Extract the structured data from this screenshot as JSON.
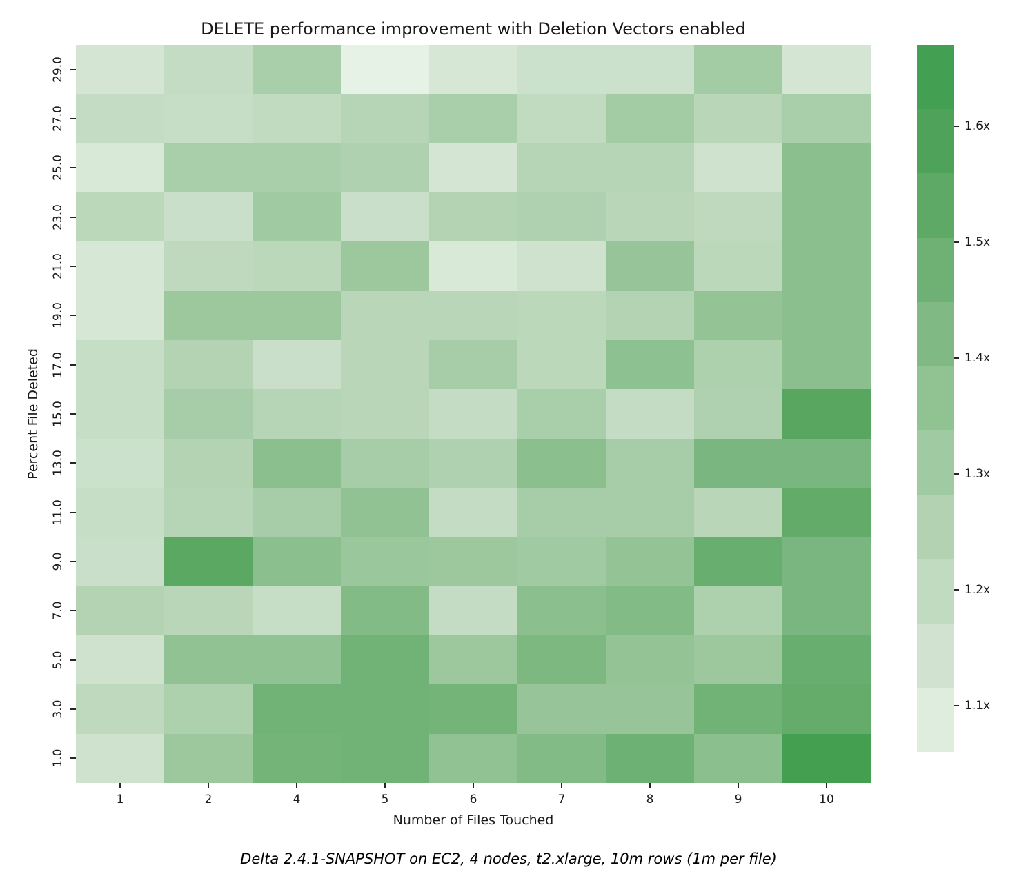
{
  "title": "DELETE performance improvement with Deletion Vectors enabled",
  "caption": "Delta 2.4.1-SNAPSHOT on EC2, 4 nodes, t2.xlarge, 10m rows (1m per file)",
  "chart_data": {
    "type": "heatmap",
    "title": "DELETE performance improvement with Deletion Vectors enabled",
    "xlabel": "Number of Files Touched",
    "ylabel": "Percent File Deleted",
    "x_categories": [
      "1",
      "2",
      "4",
      "5",
      "6",
      "7",
      "8",
      "9",
      "10"
    ],
    "y_categories": [
      "29.0",
      "27.0",
      "25.0",
      "23.0",
      "21.0",
      "19.0",
      "17.0",
      "15.0",
      "13.0",
      "11.0",
      "9.0",
      "7.0",
      "5.0",
      "3.0",
      "1.0"
    ],
    "values_unit": "speedup multiplier (x, estimated from color scale)",
    "values": [
      [
        1.13,
        1.19,
        1.28,
        1.06,
        1.12,
        1.16,
        1.16,
        1.3,
        1.13
      ],
      [
        1.19,
        1.18,
        1.2,
        1.24,
        1.28,
        1.2,
        1.3,
        1.23,
        1.28
      ],
      [
        1.11,
        1.28,
        1.28,
        1.26,
        1.13,
        1.24,
        1.24,
        1.15,
        1.38
      ],
      [
        1.22,
        1.17,
        1.31,
        1.17,
        1.25,
        1.26,
        1.23,
        1.21,
        1.38
      ],
      [
        1.12,
        1.21,
        1.22,
        1.32,
        1.11,
        1.15,
        1.34,
        1.22,
        1.38
      ],
      [
        1.12,
        1.32,
        1.32,
        1.23,
        1.23,
        1.22,
        1.25,
        1.35,
        1.38
      ],
      [
        1.18,
        1.25,
        1.17,
        1.23,
        1.29,
        1.22,
        1.37,
        1.27,
        1.38
      ],
      [
        1.18,
        1.29,
        1.24,
        1.23,
        1.19,
        1.28,
        1.19,
        1.26,
        1.55
      ],
      [
        1.16,
        1.25,
        1.38,
        1.29,
        1.26,
        1.38,
        1.29,
        1.44,
        1.44
      ],
      [
        1.18,
        1.24,
        1.29,
        1.36,
        1.19,
        1.29,
        1.29,
        1.23,
        1.52
      ],
      [
        1.17,
        1.54,
        1.38,
        1.33,
        1.32,
        1.31,
        1.35,
        1.5,
        1.44
      ],
      [
        1.25,
        1.23,
        1.18,
        1.41,
        1.19,
        1.38,
        1.41,
        1.27,
        1.44
      ],
      [
        1.15,
        1.36,
        1.36,
        1.47,
        1.32,
        1.43,
        1.35,
        1.32,
        1.5
      ],
      [
        1.21,
        1.27,
        1.47,
        1.47,
        1.46,
        1.34,
        1.34,
        1.47,
        1.51
      ],
      [
        1.15,
        1.32,
        1.46,
        1.47,
        1.36,
        1.41,
        1.48,
        1.38,
        1.64
      ]
    ],
    "colorbar": {
      "tick_labels": [
        "1.6x",
        "1.5x",
        "1.4x",
        "1.3x",
        "1.2x",
        "1.1x"
      ],
      "tick_values": [
        1.6,
        1.5,
        1.4,
        1.3,
        1.2,
        1.1
      ],
      "min": 1.06,
      "max": 1.67,
      "bands": 11,
      "position": "right"
    },
    "color_ramp": [
      {
        "v": 1.05,
        "c": "#eaf4ea"
      },
      {
        "v": 1.1,
        "c": "#dcebdb"
      },
      {
        "v": 1.15,
        "c": "#cfe2ce"
      },
      {
        "v": 1.2,
        "c": "#c1dbc1"
      },
      {
        "v": 1.25,
        "c": "#b3d3b3"
      },
      {
        "v": 1.3,
        "c": "#a3cba4"
      },
      {
        "v": 1.35,
        "c": "#94c496"
      },
      {
        "v": 1.4,
        "c": "#86bc89"
      },
      {
        "v": 1.45,
        "c": "#77b57c"
      },
      {
        "v": 1.5,
        "c": "#68ae6e"
      },
      {
        "v": 1.55,
        "c": "#58a660"
      },
      {
        "v": 1.6,
        "c": "#4aa156"
      },
      {
        "v": 1.67,
        "c": "#3f9d4e"
      }
    ],
    "grid": false,
    "annotations": []
  }
}
